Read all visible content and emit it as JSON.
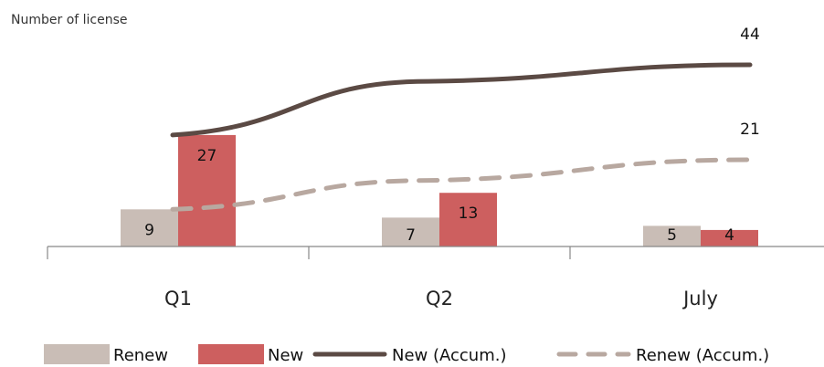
{
  "chart_data": {
    "type": "bar",
    "title": "",
    "ylabel": "Number of license",
    "categories": [
      "Q1",
      "Q2",
      "July"
    ],
    "series": [
      {
        "name": "Renew",
        "kind": "bar",
        "color": "#c9bdb6",
        "values": [
          9,
          7,
          5
        ],
        "labels": [
          "9",
          "7",
          "5"
        ]
      },
      {
        "name": "New",
        "kind": "bar",
        "color": "#cd5f5f",
        "values": [
          27,
          13,
          4
        ],
        "labels": [
          "27",
          "13",
          "4"
        ]
      },
      {
        "name": "New (Accum.)",
        "kind": "line",
        "style": "solid",
        "color": "#5b4a44",
        "values": [
          27,
          40,
          44
        ],
        "labels": [
          "",
          "",
          "44"
        ]
      },
      {
        "name": "Renew (Accum.)",
        "kind": "line",
        "style": "dashed",
        "color": "#b8a8a0",
        "values": [
          9,
          16,
          21
        ],
        "labels": [
          "",
          "",
          "21"
        ]
      }
    ],
    "ylim": [
      0,
      46
    ],
    "grid": false,
    "legend_position": "bottom"
  }
}
